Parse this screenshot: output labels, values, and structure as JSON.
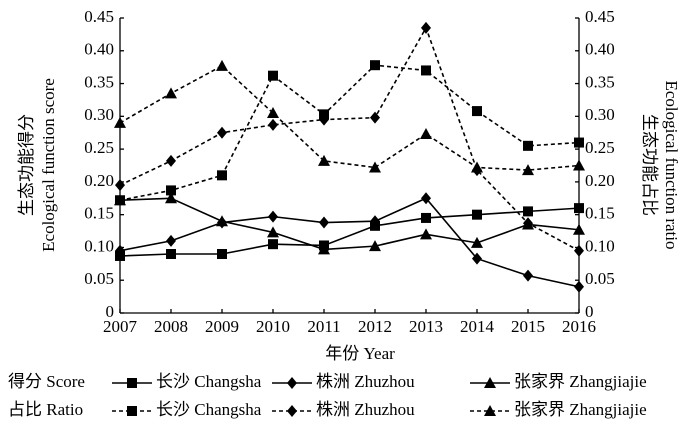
{
  "chart_data": {
    "type": "line",
    "x_label": "年份 Year",
    "y_label": [
      "生态功能得分",
      "Ecological function score"
    ],
    "y2_label": [
      "生态功能占比",
      "Ecological function ratio"
    ],
    "legend_groups": [
      "得分 Score",
      "占比 Ratio"
    ],
    "x": [
      2007,
      2008,
      2009,
      2010,
      2011,
      2012,
      2013,
      2014,
      2015,
      2016
    ],
    "xlim": [
      2007,
      2016
    ],
    "xticks": [
      2007,
      2008,
      2009,
      2010,
      2011,
      2012,
      2013,
      2014,
      2015,
      2016
    ],
    "ylim": [
      0,
      0.45
    ],
    "yticks": [
      0,
      0.05,
      {
        "value": 0.1,
        "label": "0.10"
      },
      0.15,
      {
        "value": 0.2,
        "label": "0.20"
      },
      0.25,
      {
        "value": 0.3,
        "label": "0.30"
      },
      0.35,
      {
        "value": 0.4,
        "label": "0.40"
      },
      0.45
    ],
    "y2lim": [
      0,
      0.45
    ],
    "y2ticks": [
      0,
      0.05,
      {
        "value": 0.1,
        "label": "0.10"
      },
      0.15,
      {
        "value": 0.2,
        "label": "0.20"
      },
      0.25,
      {
        "value": 0.3,
        "label": "0.30"
      },
      0.35,
      {
        "value": 0.4,
        "label": "0.40"
      },
      0.45
    ],
    "series": [
      {
        "name": "长沙 Changsha",
        "color": "#000000",
        "marker": "square",
        "line_style": "solid",
        "axis": "y",
        "values": [
          0.087,
          0.09,
          0.09,
          0.105,
          0.103,
          0.133,
          0.145,
          0.15,
          0.155,
          0.16
        ]
      },
      {
        "name": "株洲 Zhuzhou",
        "color": "#000000",
        "marker": "diamond",
        "line_style": "solid",
        "axis": "y",
        "values": [
          0.095,
          0.11,
          0.138,
          0.147,
          0.138,
          0.14,
          0.175,
          0.083,
          0.057,
          0.04
        ]
      },
      {
        "name": "张家界 Zhangjiajie",
        "color": "#000000",
        "marker": "triangle",
        "line_style": "solid",
        "axis": "y",
        "values": [
          0.172,
          0.175,
          0.14,
          0.123,
          0.097,
          0.102,
          0.12,
          0.107,
          0.135,
          0.127
        ]
      },
      {
        "name": "长沙 Changsha",
        "color": "#000000",
        "marker": "square",
        "line_style": "dotted",
        "axis": "y2",
        "values": [
          0.172,
          0.187,
          0.21,
          0.362,
          0.303,
          0.378,
          0.37,
          0.308,
          0.255,
          0.26
        ]
      },
      {
        "name": "株洲 Zhuzhou",
        "color": "#000000",
        "marker": "diamond",
        "line_style": "dotted",
        "axis": "y2",
        "values": [
          0.195,
          0.232,
          0.275,
          0.287,
          0.295,
          0.298,
          0.435,
          0.218,
          0.137,
          0.095
        ]
      },
      {
        "name": "张家界 Zhangjiajie",
        "color": "#000000",
        "marker": "triangle",
        "line_style": "dotted",
        "axis": "y2",
        "values": [
          0.29,
          0.335,
          0.377,
          0.305,
          0.232,
          0.222,
          0.273,
          0.222,
          0.218,
          0.225
        ]
      }
    ]
  }
}
